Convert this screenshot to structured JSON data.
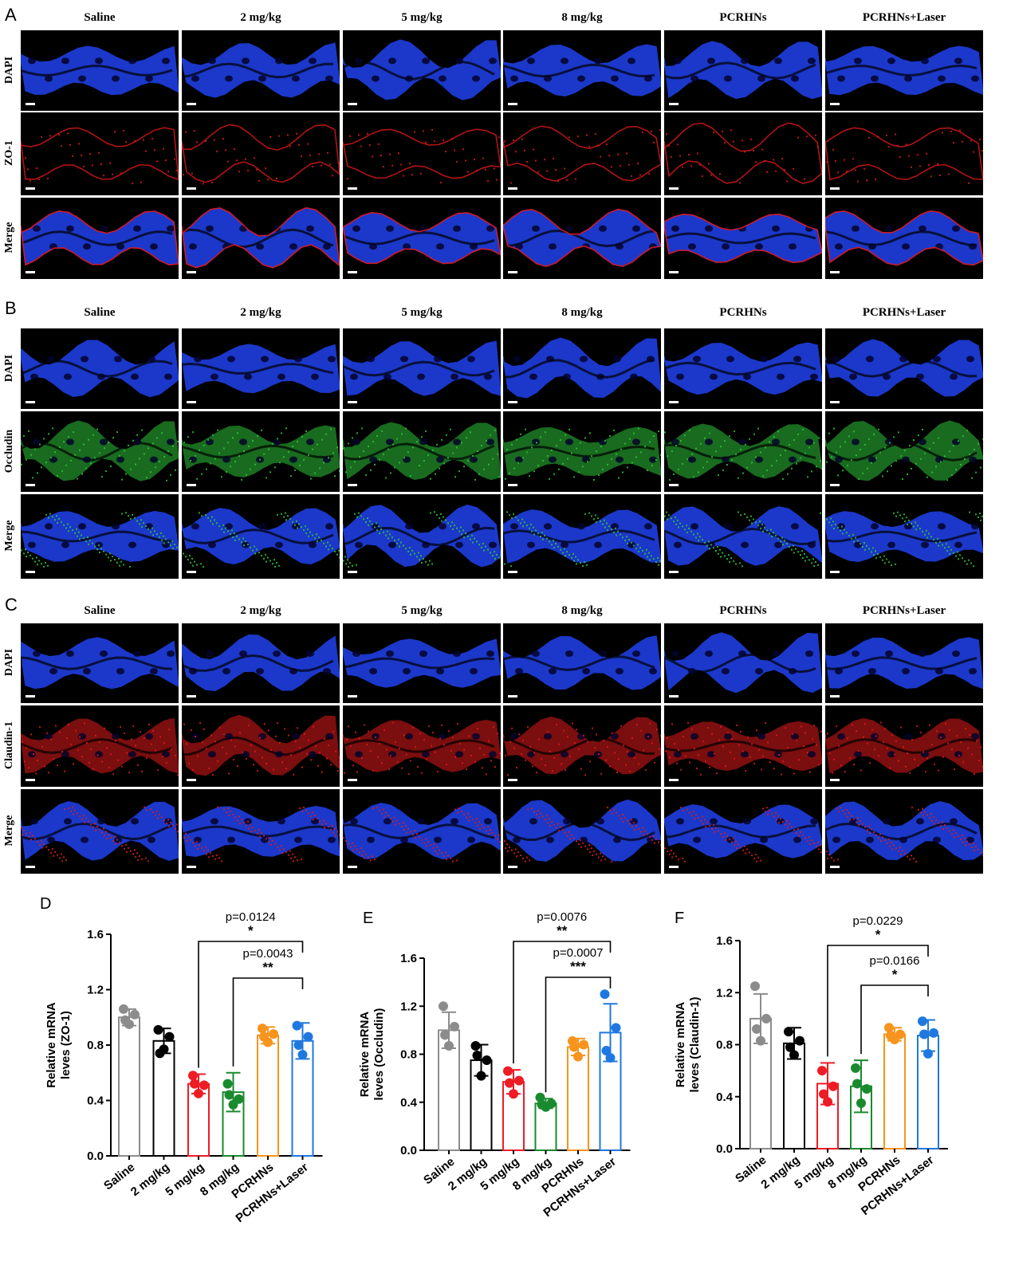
{
  "panels": {
    "A": {
      "letter": "A",
      "marker": "ZO-1"
    },
    "B": {
      "letter": "B",
      "marker": "Occludin"
    },
    "C": {
      "letter": "C",
      "marker": "Claudin-1"
    }
  },
  "column_labels": [
    "Saline",
    "2 mg/kg",
    "5 mg/kg",
    "8 mg/kg",
    "PCRHNs",
    "PCRHNs+Laser"
  ],
  "row_labels": {
    "dapi": "DAPI",
    "merge": "Merge"
  },
  "colors": {
    "dapi": "#1f3fe0",
    "zo1": "#e01818",
    "occludin": "#2fc43a",
    "claudin": "#e01a1a",
    "groups": [
      "#8c8c8c",
      "#000000",
      "#ee1c25",
      "#1a8a2e",
      "#f7941d",
      "#1f78e0"
    ]
  },
  "chart_data": [
    {
      "panel": "D",
      "type": "bar",
      "ylabel": "Relative mRNA\nleves (ZO-1)",
      "ylim": [
        0,
        1.6
      ],
      "yticks": [
        "0.0",
        "0.4",
        "0.8",
        "1.2",
        "1.6"
      ],
      "categories": [
        "Saline",
        "2 mg/kg",
        "5 mg/kg",
        "8 mg/kg",
        "PCRHNs",
        "PCRHNs+Laser"
      ],
      "values": [
        1.0,
        0.83,
        0.52,
        0.46,
        0.87,
        0.83
      ],
      "sd": [
        0.06,
        0.09,
        0.07,
        0.14,
        0.06,
        0.13
      ],
      "points": [
        [
          1.06,
          1.02,
          0.95,
          0.98
        ],
        [
          0.91,
          0.86,
          0.77,
          0.74
        ],
        [
          0.58,
          0.51,
          0.45,
          0.52
        ],
        [
          0.52,
          0.41,
          0.37,
          0.44
        ],
        [
          0.92,
          0.88,
          0.82,
          0.86
        ],
        [
          0.94,
          0.86,
          0.73,
          0.8
        ]
      ],
      "significance": [
        {
          "from": 2,
          "to": 5,
          "p": "p=0.0124",
          "stars": "*"
        },
        {
          "from": 3,
          "to": 5,
          "p": "p=0.0043",
          "stars": "**"
        }
      ]
    },
    {
      "panel": "E",
      "type": "bar",
      "ylabel": "Relative mRNA\nleves (Occludin)",
      "ylim": [
        0,
        1.6
      ],
      "yticks": [
        "0.0",
        "0.4",
        "0.8",
        "1.2",
        "1.6"
      ],
      "categories": [
        "Saline",
        "2 mg/kg",
        "5 mg/kg",
        "8 mg/kg",
        "PCRHNs",
        "PCRHNs+Laser"
      ],
      "values": [
        1.0,
        0.75,
        0.57,
        0.39,
        0.86,
        0.98
      ],
      "sd": [
        0.15,
        0.13,
        0.1,
        0.04,
        0.07,
        0.24
      ],
      "points": [
        [
          1.2,
          1.03,
          0.87,
          0.96
        ],
        [
          0.87,
          0.75,
          0.62,
          0.79
        ],
        [
          0.66,
          0.58,
          0.47,
          0.56
        ],
        [
          0.44,
          0.39,
          0.36,
          0.38
        ],
        [
          0.91,
          0.88,
          0.78,
          0.86
        ],
        [
          1.3,
          1.02,
          0.77,
          0.83
        ]
      ],
      "significance": [
        {
          "from": 2,
          "to": 5,
          "p": "p=0.0076",
          "stars": "**"
        },
        {
          "from": 3,
          "to": 5,
          "p": "p=0.0007",
          "stars": "***"
        }
      ]
    },
    {
      "panel": "F",
      "type": "bar",
      "ylabel": "Relative mRNA\nleves (Claudin-1)",
      "ylim": [
        0,
        1.6
      ],
      "yticks": [
        "0.0",
        "0.4",
        "0.8",
        "1.2",
        "1.6"
      ],
      "categories": [
        "Saline",
        "2 mg/kg",
        "5 mg/kg",
        "8 mg/kg",
        "PCRHNs",
        "PCRHNs+Laser"
      ],
      "values": [
        1.0,
        0.81,
        0.5,
        0.48,
        0.88,
        0.87
      ],
      "sd": [
        0.19,
        0.12,
        0.16,
        0.2,
        0.05,
        0.12
      ],
      "points": [
        [
          1.25,
          1.0,
          0.83,
          0.92
        ],
        [
          0.9,
          0.83,
          0.72,
          0.78
        ],
        [
          0.6,
          0.48,
          0.36,
          0.42
        ],
        [
          0.62,
          0.46,
          0.35,
          0.5
        ],
        [
          0.93,
          0.88,
          0.84,
          0.87
        ],
        [
          0.98,
          0.89,
          0.73,
          0.88
        ]
      ],
      "significance": [
        {
          "from": 2,
          "to": 5,
          "p": "p=0.0229",
          "stars": "*"
        },
        {
          "from": 3,
          "to": 5,
          "p": "p=0.0166",
          "stars": "*"
        }
      ]
    }
  ]
}
